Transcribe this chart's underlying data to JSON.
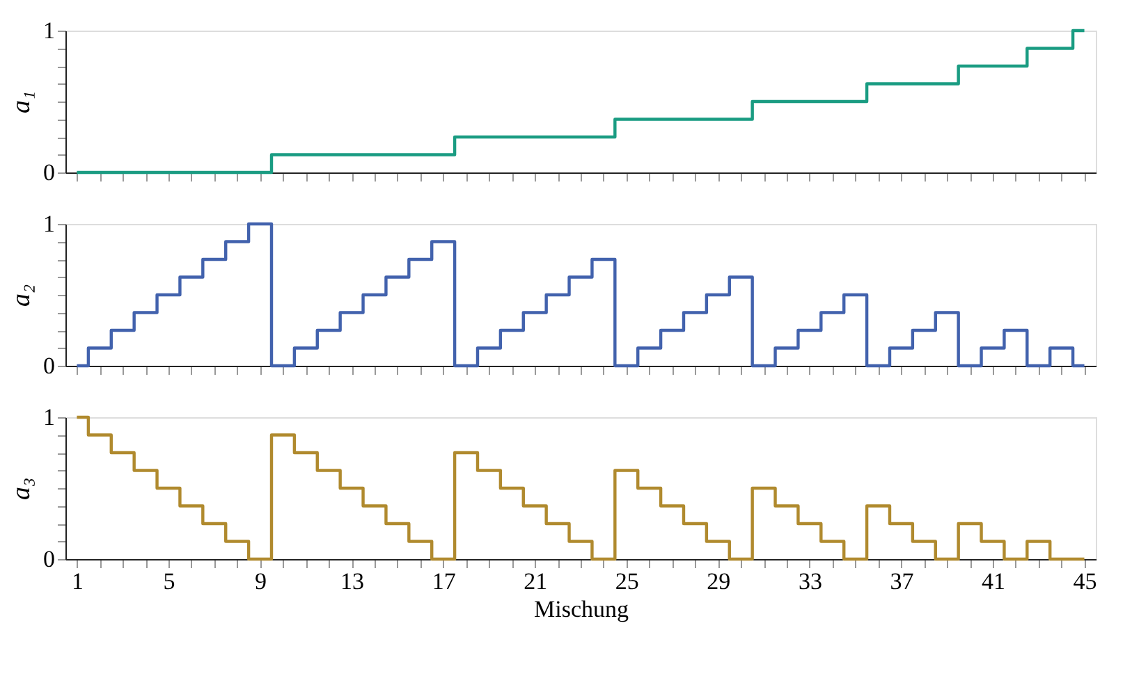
{
  "chart_data": [
    {
      "type": "step",
      "ylabel": "a₁",
      "x": [
        1,
        2,
        3,
        4,
        5,
        6,
        7,
        8,
        9,
        10,
        11,
        12,
        13,
        14,
        15,
        16,
        17,
        18,
        19,
        20,
        21,
        22,
        23,
        24,
        25,
        26,
        27,
        28,
        29,
        30,
        31,
        32,
        33,
        34,
        35,
        36,
        37,
        38,
        39,
        40,
        41,
        42,
        43,
        44,
        45
      ],
      "series": [
        {
          "color": "#1a9c82",
          "values": [
            0,
            0,
            0,
            0,
            0,
            0,
            0,
            0,
            0,
            0.125,
            0.125,
            0.125,
            0.125,
            0.125,
            0.125,
            0.125,
            0.125,
            0.25,
            0.25,
            0.25,
            0.25,
            0.25,
            0.25,
            0.25,
            0.375,
            0.375,
            0.375,
            0.375,
            0.375,
            0.375,
            0.5,
            0.5,
            0.5,
            0.5,
            0.5,
            0.625,
            0.625,
            0.625,
            0.625,
            0.75,
            0.75,
            0.75,
            0.875,
            0.875,
            1
          ]
        }
      ],
      "xlim": [
        0.5,
        45.5
      ],
      "ylim": [
        0,
        1
      ],
      "xticks": [
        1,
        {
          "value": 2,
          "label": null
        },
        {
          "value": 3,
          "label": null
        },
        {
          "value": 4,
          "label": null
        },
        5,
        {
          "value": 6,
          "label": null
        },
        {
          "value": 7,
          "label": null
        },
        {
          "value": 8,
          "label": null
        },
        9,
        {
          "value": 10,
          "label": null
        },
        {
          "value": 11,
          "label": null
        },
        {
          "value": 12,
          "label": null
        },
        13,
        {
          "value": 14,
          "label": null
        },
        {
          "value": 15,
          "label": null
        },
        {
          "value": 16,
          "label": null
        },
        17,
        {
          "value": 18,
          "label": null
        },
        {
          "value": 19,
          "label": null
        },
        {
          "value": 20,
          "label": null
        },
        21,
        {
          "value": 22,
          "label": null
        },
        {
          "value": 23,
          "label": null
        },
        {
          "value": 24,
          "label": null
        },
        25,
        {
          "value": 26,
          "label": null
        },
        {
          "value": 27,
          "label": null
        },
        {
          "value": 28,
          "label": null
        },
        29,
        {
          "value": 30,
          "label": null
        },
        {
          "value": 31,
          "label": null
        },
        {
          "value": 32,
          "label": null
        },
        33,
        {
          "value": 34,
          "label": null
        },
        {
          "value": 35,
          "label": null
        },
        {
          "value": 36,
          "label": null
        },
        37,
        {
          "value": 38,
          "label": null
        },
        {
          "value": 39,
          "label": null
        },
        {
          "value": 40,
          "label": null
        },
        41,
        {
          "value": 42,
          "label": null
        },
        {
          "value": 43,
          "label": null
        },
        {
          "value": 44,
          "label": null
        },
        45
      ],
      "yticks": [
        0,
        {
          "value": 0.125,
          "label": null
        },
        {
          "value": 0.25,
          "label": null
        },
        {
          "value": 0.375,
          "label": null
        },
        {
          "value": 0.5,
          "label": null
        },
        {
          "value": 0.625,
          "label": null
        },
        {
          "value": 0.75,
          "label": null
        },
        {
          "value": 0.875,
          "label": null
        },
        1
      ],
      "tick_labels": "y"
    },
    {
      "type": "step",
      "ylabel": "a₂",
      "x": [
        1,
        2,
        3,
        4,
        5,
        6,
        7,
        8,
        9,
        10,
        11,
        12,
        13,
        14,
        15,
        16,
        17,
        18,
        19,
        20,
        21,
        22,
        23,
        24,
        25,
        26,
        27,
        28,
        29,
        30,
        31,
        32,
        33,
        34,
        35,
        36,
        37,
        38,
        39,
        40,
        41,
        42,
        43,
        44,
        45
      ],
      "series": [
        {
          "color": "#4262ad",
          "values": [
            0,
            0.125,
            0.25,
            0.375,
            0.5,
            0.625,
            0.75,
            0.875,
            1,
            0,
            0.125,
            0.25,
            0.375,
            0.5,
            0.625,
            0.75,
            0.875,
            0,
            0.125,
            0.25,
            0.375,
            0.5,
            0.625,
            0.75,
            0,
            0.125,
            0.25,
            0.375,
            0.5,
            0.625,
            0,
            0.125,
            0.25,
            0.375,
            0.5,
            0,
            0.125,
            0.25,
            0.375,
            0,
            0.125,
            0.25,
            0,
            0.125,
            0
          ]
        }
      ],
      "xlim": [
        0.5,
        45.5
      ],
      "ylim": [
        0,
        1
      ],
      "xticks": [
        1,
        {
          "value": 2,
          "label": null
        },
        {
          "value": 3,
          "label": null
        },
        {
          "value": 4,
          "label": null
        },
        5,
        {
          "value": 6,
          "label": null
        },
        {
          "value": 7,
          "label": null
        },
        {
          "value": 8,
          "label": null
        },
        9,
        {
          "value": 10,
          "label": null
        },
        {
          "value": 11,
          "label": null
        },
        {
          "value": 12,
          "label": null
        },
        13,
        {
          "value": 14,
          "label": null
        },
        {
          "value": 15,
          "label": null
        },
        {
          "value": 16,
          "label": null
        },
        17,
        {
          "value": 18,
          "label": null
        },
        {
          "value": 19,
          "label": null
        },
        {
          "value": 20,
          "label": null
        },
        21,
        {
          "value": 22,
          "label": null
        },
        {
          "value": 23,
          "label": null
        },
        {
          "value": 24,
          "label": null
        },
        25,
        {
          "value": 26,
          "label": null
        },
        {
          "value": 27,
          "label": null
        },
        {
          "value": 28,
          "label": null
        },
        29,
        {
          "value": 30,
          "label": null
        },
        {
          "value": 31,
          "label": null
        },
        {
          "value": 32,
          "label": null
        },
        33,
        {
          "value": 34,
          "label": null
        },
        {
          "value": 35,
          "label": null
        },
        {
          "value": 36,
          "label": null
        },
        37,
        {
          "value": 38,
          "label": null
        },
        {
          "value": 39,
          "label": null
        },
        {
          "value": 40,
          "label": null
        },
        41,
        {
          "value": 42,
          "label": null
        },
        {
          "value": 43,
          "label": null
        },
        {
          "value": 44,
          "label": null
        },
        45
      ],
      "yticks": [
        0,
        {
          "value": 0.125,
          "label": null
        },
        {
          "value": 0.25,
          "label": null
        },
        {
          "value": 0.375,
          "label": null
        },
        {
          "value": 0.5,
          "label": null
        },
        {
          "value": 0.625,
          "label": null
        },
        {
          "value": 0.75,
          "label": null
        },
        {
          "value": 0.875,
          "label": null
        },
        1
      ],
      "tick_labels": "y"
    },
    {
      "type": "step",
      "ylabel": "a₃",
      "xlabel": "Mischung",
      "x": [
        1,
        2,
        3,
        4,
        5,
        6,
        7,
        8,
        9,
        10,
        11,
        12,
        13,
        14,
        15,
        16,
        17,
        18,
        19,
        20,
        21,
        22,
        23,
        24,
        25,
        26,
        27,
        28,
        29,
        30,
        31,
        32,
        33,
        34,
        35,
        36,
        37,
        38,
        39,
        40,
        41,
        42,
        43,
        44,
        45
      ],
      "series": [
        {
          "color": "#b08a2e",
          "values": [
            1,
            0.875,
            0.75,
            0.625,
            0.5,
            0.375,
            0.25,
            0.125,
            0,
            0.875,
            0.75,
            0.625,
            0.5,
            0.375,
            0.25,
            0.125,
            0,
            0.75,
            0.625,
            0.5,
            0.375,
            0.25,
            0.125,
            0,
            0.625,
            0.5,
            0.375,
            0.25,
            0.125,
            0,
            0.5,
            0.375,
            0.25,
            0.125,
            0,
            0.375,
            0.25,
            0.125,
            0,
            0.25,
            0.125,
            0,
            0.125,
            0,
            0
          ]
        }
      ],
      "xlim": [
        0.5,
        45.5
      ],
      "ylim": [
        0,
        1
      ],
      "xticks": [
        1,
        {
          "value": 2,
          "label": null
        },
        {
          "value": 3,
          "label": null
        },
        {
          "value": 4,
          "label": null
        },
        5,
        {
          "value": 6,
          "label": null
        },
        {
          "value": 7,
          "label": null
        },
        {
          "value": 8,
          "label": null
        },
        9,
        {
          "value": 10,
          "label": null
        },
        {
          "value": 11,
          "label": null
        },
        {
          "value": 12,
          "label": null
        },
        13,
        {
          "value": 14,
          "label": null
        },
        {
          "value": 15,
          "label": null
        },
        {
          "value": 16,
          "label": null
        },
        17,
        {
          "value": 18,
          "label": null
        },
        {
          "value": 19,
          "label": null
        },
        {
          "value": 20,
          "label": null
        },
        21,
        {
          "value": 22,
          "label": null
        },
        {
          "value": 23,
          "label": null
        },
        {
          "value": 24,
          "label": null
        },
        25,
        {
          "value": 26,
          "label": null
        },
        {
          "value": 27,
          "label": null
        },
        {
          "value": 28,
          "label": null
        },
        29,
        {
          "value": 30,
          "label": null
        },
        {
          "value": 31,
          "label": null
        },
        {
          "value": 32,
          "label": null
        },
        33,
        {
          "value": 34,
          "label": null
        },
        {
          "value": 35,
          "label": null
        },
        {
          "value": 36,
          "label": null
        },
        37,
        {
          "value": 38,
          "label": null
        },
        {
          "value": 39,
          "label": null
        },
        {
          "value": 40,
          "label": null
        },
        41,
        {
          "value": 42,
          "label": null
        },
        {
          "value": 43,
          "label": null
        },
        {
          "value": 44,
          "label": null
        },
        45
      ],
      "yticks": [
        0,
        {
          "value": 0.125,
          "label": null
        },
        {
          "value": 0.25,
          "label": null
        },
        {
          "value": 0.375,
          "label": null
        },
        {
          "value": 0.5,
          "label": null
        },
        {
          "value": 0.625,
          "label": null
        },
        {
          "value": 0.75,
          "label": null
        },
        {
          "value": 0.875,
          "label": null
        },
        1
      ]
    }
  ]
}
